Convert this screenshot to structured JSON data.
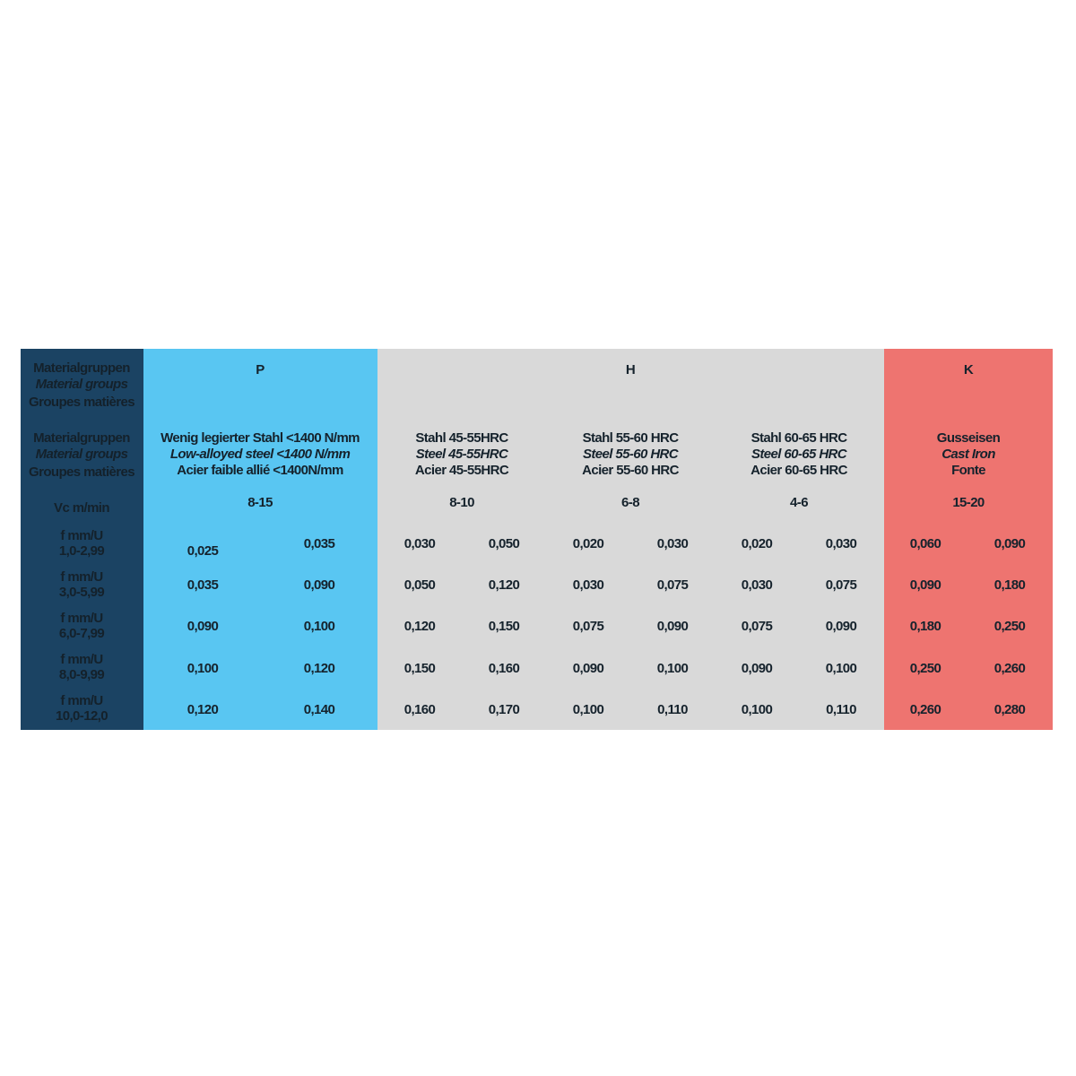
{
  "colors": {
    "label_col": "#1b4363",
    "P": "#59c6f2",
    "H": "#d9d9d9",
    "K": "#ee7470"
  },
  "left": {
    "groups_header": [
      "Materialgruppen",
      "Material groups",
      "Groupes matières"
    ],
    "subgroups_header": [
      "Materialgruppen",
      "Material groups",
      "Groupes matières"
    ],
    "vc": "Vc m/min",
    "rows": [
      [
        "f mm/U",
        "1,0-2,99"
      ],
      [
        "f mm/U",
        "3,0-5,99"
      ],
      [
        "f mm/U",
        "6,0-7,99"
      ],
      [
        "f mm/U",
        "8,0-9,99"
      ],
      [
        "f mm/U",
        "10,0-12,0"
      ]
    ]
  },
  "groups": [
    {
      "label": "P"
    },
    {
      "label": "H"
    },
    {
      "label": "K"
    }
  ],
  "subgroups": [
    {
      "de": "Wenig legierter Stahl <1400 N/mm",
      "en": "Low-alloyed steel  <1400 N/mm",
      "fr": "Acier faible allié <1400N/mm",
      "vc": "8-15",
      "values": [
        [
          "0,025",
          "0,035"
        ],
        [
          "0,035",
          "0,090"
        ],
        [
          "0,090",
          "0,100"
        ],
        [
          "0,100",
          "0,120"
        ],
        [
          "0,120",
          "0,140"
        ]
      ]
    },
    {
      "de": "Stahl 45-55HRC",
      "en": "Steel 45-55HRC",
      "fr": "Acier 45-55HRC",
      "vc": "8-10",
      "values": [
        [
          "0,030",
          "0,050"
        ],
        [
          "0,050",
          "0,120"
        ],
        [
          "0,120",
          "0,150"
        ],
        [
          "0,150",
          "0,160"
        ],
        [
          "0,160",
          "0,170"
        ]
      ]
    },
    {
      "de": "Stahl 55-60 HRC",
      "en": "Steel 55-60 HRC",
      "fr": "Acier 55-60  HRC",
      "vc": "6-8",
      "values": [
        [
          "0,020",
          "0,030"
        ],
        [
          "0,030",
          "0,075"
        ],
        [
          "0,075",
          "0,090"
        ],
        [
          "0,090",
          "0,100"
        ],
        [
          "0,100",
          "0,110"
        ]
      ]
    },
    {
      "de": "Stahl 60-65 HRC",
      "en": "Steel 60-65 HRC",
      "fr": "Acier 60-65  HRC",
      "vc": "4-6",
      "values": [
        [
          "0,020",
          "0,030"
        ],
        [
          "0,030",
          "0,075"
        ],
        [
          "0,075",
          "0,090"
        ],
        [
          "0,090",
          "0,100"
        ],
        [
          "0,100",
          "0,110"
        ]
      ]
    },
    {
      "de": "Gusseisen",
      "en": "Cast Iron",
      "fr": "Fonte",
      "vc": "15-20",
      "values": [
        [
          "0,060",
          "0,090"
        ],
        [
          "0,090",
          "0,180"
        ],
        [
          "0,180",
          "0,250"
        ],
        [
          "0,250",
          "0,260"
        ],
        [
          "0,260",
          "0,280"
        ]
      ]
    }
  ]
}
